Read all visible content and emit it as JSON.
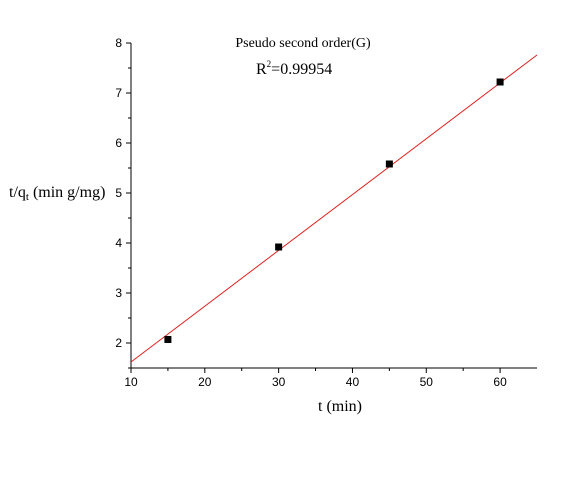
{
  "chart_data": {
    "type": "scatter",
    "title": "Pseudo second order(G)",
    "annotation": {
      "r_label": "R",
      "r_sup": "2",
      "r_value": "=0.99954"
    },
    "xlabel": "t (min)",
    "ylabel_main": "t/q",
    "ylabel_sub": "t",
    "ylabel_tail": " (min g/mg)",
    "xlim": [
      10,
      65
    ],
    "ylim": [
      1.5,
      8
    ],
    "xticks": [
      10,
      20,
      30,
      40,
      50,
      60
    ],
    "yticks": [
      2,
      3,
      4,
      5,
      6,
      7,
      8
    ],
    "grid": false,
    "points": [
      {
        "x": 15,
        "y": 2.07
      },
      {
        "x": 30,
        "y": 3.92
      },
      {
        "x": 45,
        "y": 5.58
      },
      {
        "x": 60,
        "y": 7.22
      }
    ],
    "fit_line": {
      "x": [
        10,
        65
      ],
      "y": [
        1.62,
        7.76
      ],
      "color": "#e02020"
    },
    "marker_color": "#000000"
  }
}
